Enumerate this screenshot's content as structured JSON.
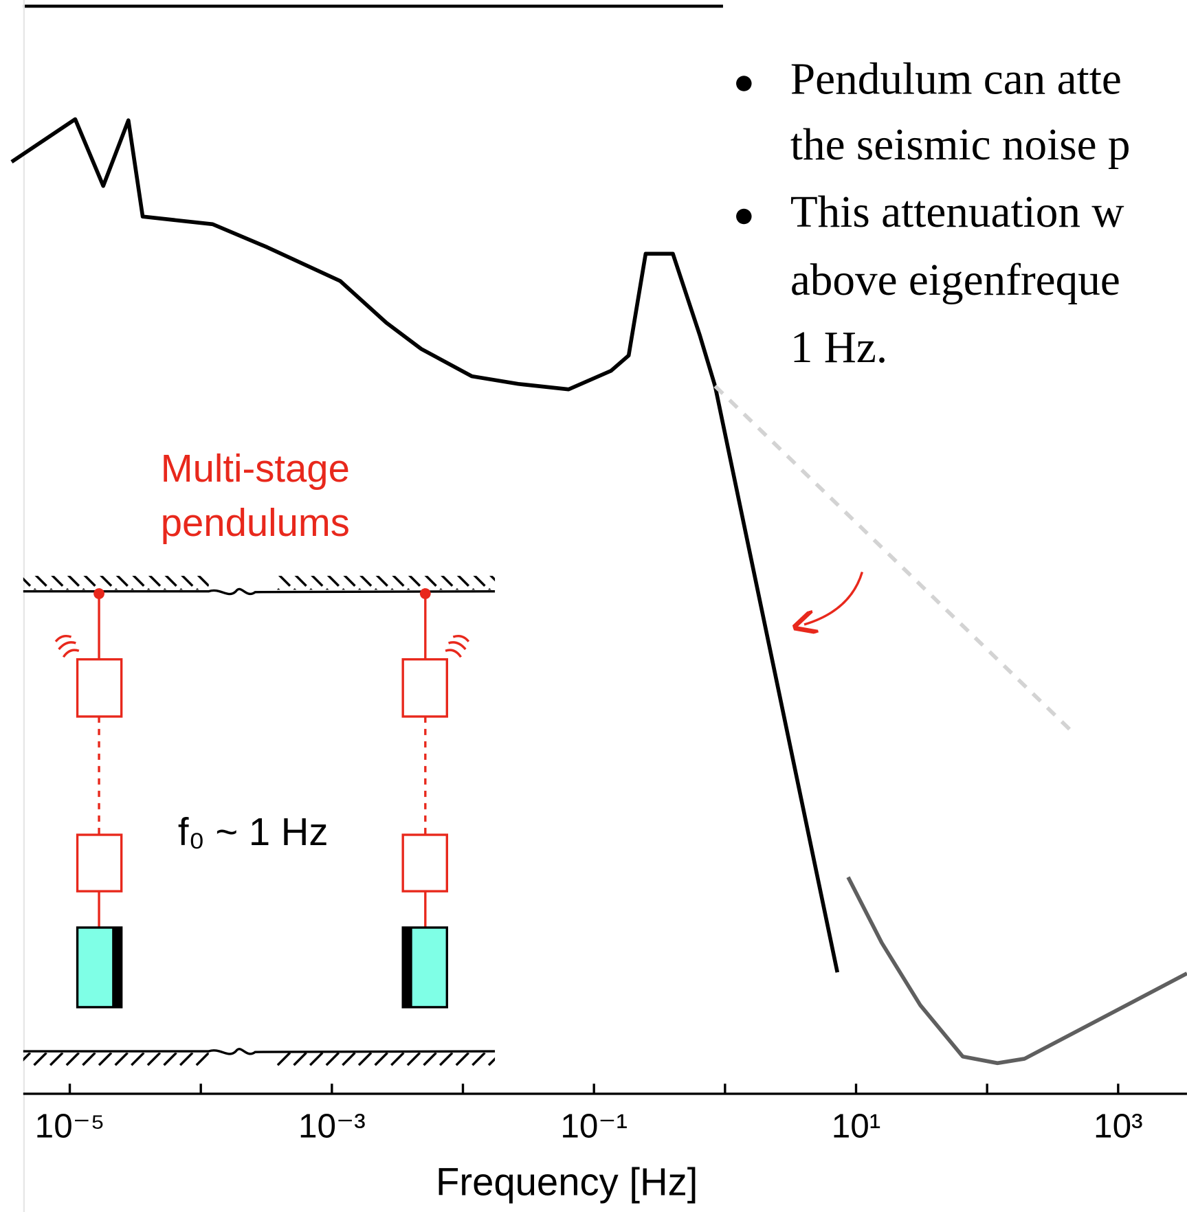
{
  "chart_data": {
    "type": "line",
    "xlabel": "Frequency [Hz]",
    "xscale": "log",
    "xlim": [
      3.6e-06,
      3350
    ],
    "ylim": [
      0,
      100
    ],
    "xticks": [
      {
        "value": 1e-05,
        "label": "10⁻⁵"
      },
      {
        "value": 0.001,
        "label": "10⁻³"
      },
      {
        "value": 0.1,
        "label": "10⁻¹"
      },
      {
        "value": 10,
        "label": "10¹"
      },
      {
        "value": 1000,
        "label": "10³"
      }
    ],
    "xminor_ticks": [
      0.0001,
      0.01,
      1,
      100
    ],
    "series": [
      {
        "color": "#000000",
        "dash": false,
        "x": [
          3.6e-06,
          1.1e-05,
          1.8e-05,
          2.8e-05,
          3.6e-05,
          0.000123,
          0.00032,
          0.00116,
          0.0026,
          0.0048,
          0.0117,
          0.0264,
          0.064,
          0.135,
          0.184,
          0.248,
          0.4,
          0.64,
          0.84,
          7.2
        ],
        "values": [
          85.2,
          89.1,
          83.0,
          89.0,
          80.2,
          79.5,
          77.4,
          74.3,
          70.5,
          68.1,
          65.6,
          64.9,
          64.4,
          66.1,
          67.5,
          76.8,
          76.8,
          69.4,
          64.7,
          11.1
        ]
      },
      {
        "color": "#d3d3d3",
        "dash": true,
        "x": [
          0.84,
          437
        ],
        "values": [
          64.7,
          33.2
        ]
      },
      {
        "color": "#5f5f5f",
        "dash": false,
        "x": [
          8.7,
          15.7,
          30.9,
          65.2,
          120,
          193,
          3350
        ],
        "values": [
          19.8,
          13.8,
          8.1,
          3.4,
          2.8,
          3.2,
          11.0
        ]
      }
    ],
    "annotations": {
      "diagram_title": [
        "Multi-stage",
        "pendulums"
      ],
      "frequency_note": "f₀ ~ 1 Hz"
    },
    "bullets": [
      [
        "Pendulum can atte",
        "the seismic noise p"
      ],
      [
        "This attenuation w",
        "above eigenfreque",
        "1 Hz."
      ]
    ]
  }
}
